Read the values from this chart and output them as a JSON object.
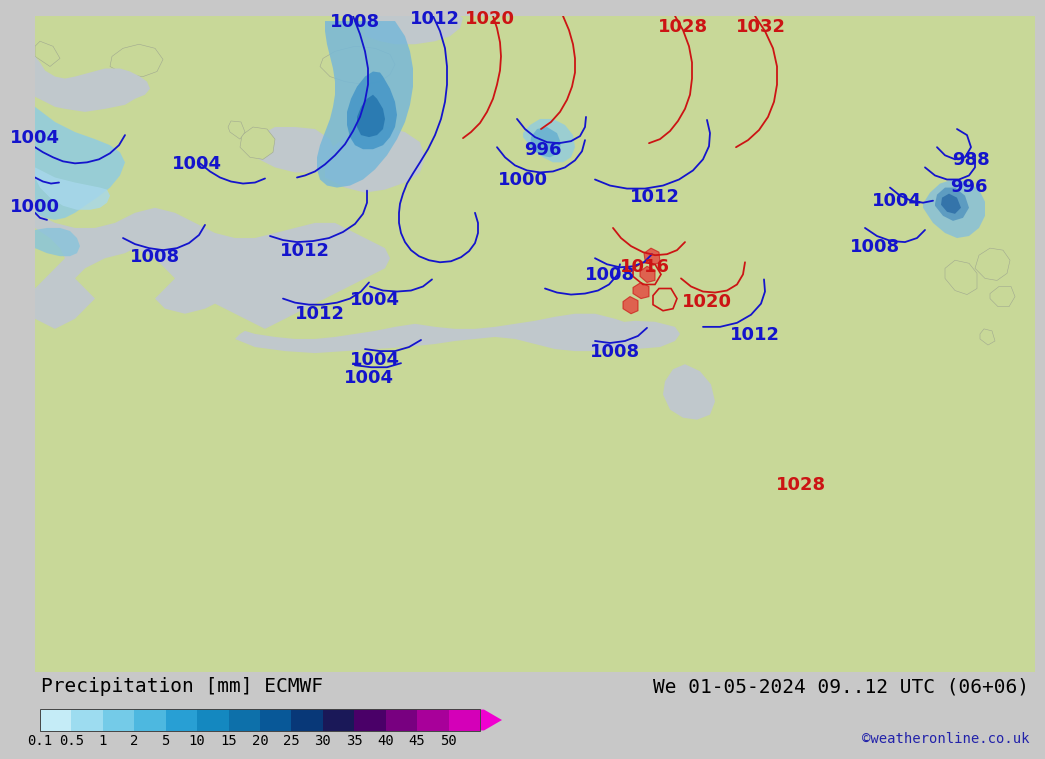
{
  "title_left": "Precipitation [mm] ECMWF",
  "title_right": "We 01-05-2024 09..12 UTC (06+06)",
  "credit": "©weatheronline.co.uk",
  "cbar_labels": [
    "0.1",
    "0.5",
    "1",
    "2",
    "5",
    "10",
    "15",
    "20",
    "25",
    "30",
    "35",
    "40",
    "45",
    "50"
  ],
  "cbar_colors": [
    "#c5ecf7",
    "#9ddcf0",
    "#74cbe8",
    "#4db8e0",
    "#289fd4",
    "#1488c0",
    "#0d70aa",
    "#085898",
    "#083878",
    "#1a1858",
    "#4a0068",
    "#780080",
    "#a8009a",
    "#d400b8",
    "#f000d0"
  ],
  "bg_color": "#c8c8c8",
  "land_green_light": "#c8d8a0",
  "land_green_med": "#b8cc90",
  "sea_color": "#d0e8f0",
  "isobar_blue": "#1414cc",
  "isobar_red": "#cc1414",
  "legend_bg": "#ffffff",
  "title_fontsize": 14,
  "credit_fontsize": 10,
  "isobar_fontsize": 13,
  "cbar_label_fontsize": 10
}
